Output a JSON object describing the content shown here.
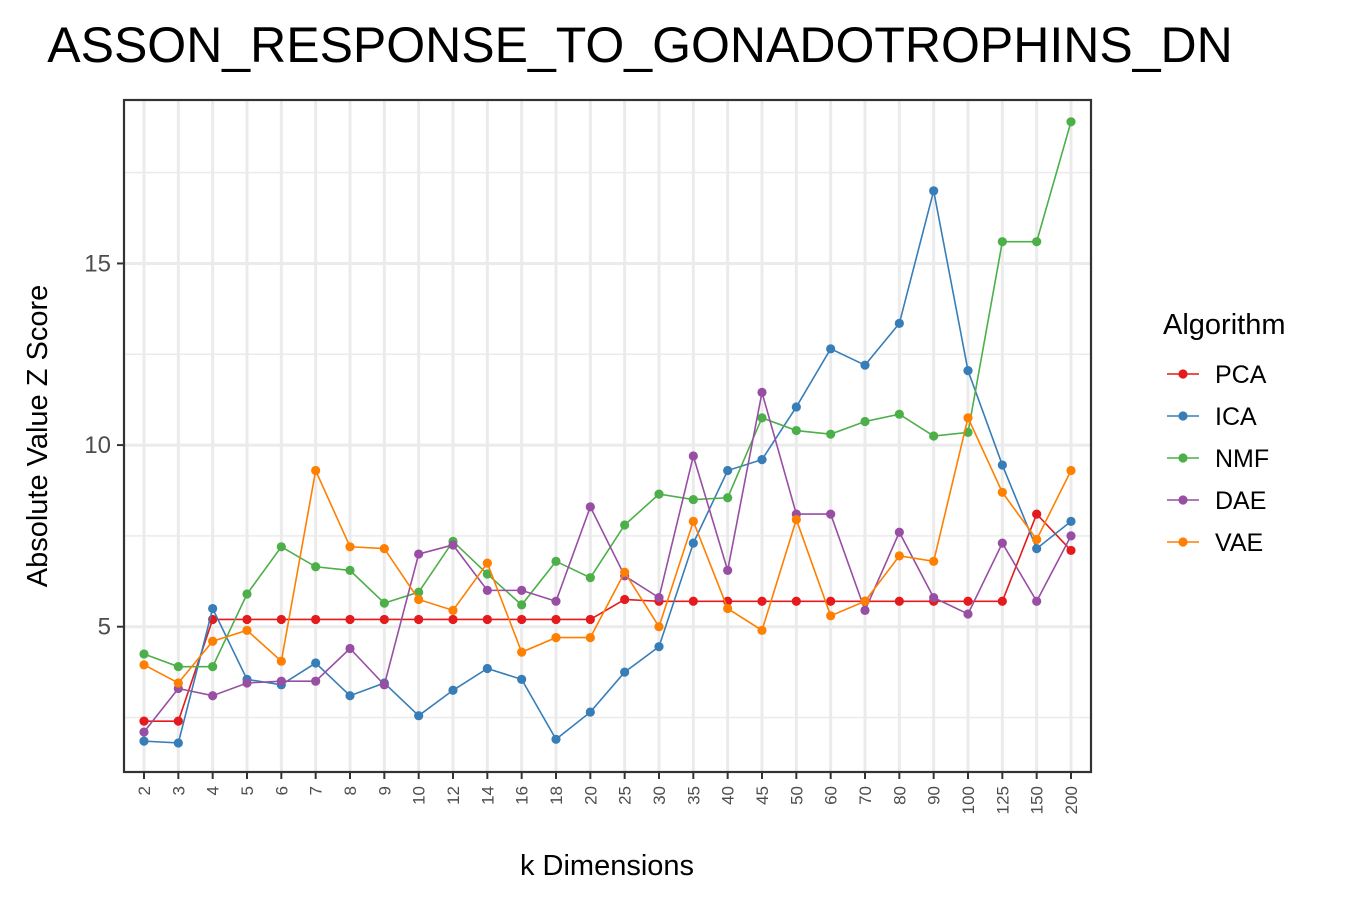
{
  "chart_data": {
    "type": "line",
    "title": "ASSON_RESPONSE_TO_GONADOTROPHINS_DN",
    "xlabel": "k Dimensions",
    "ylabel": "Absolute Value Z Score",
    "categories": [
      "2",
      "3",
      "4",
      "5",
      "6",
      "7",
      "8",
      "9",
      "10",
      "12",
      "14",
      "16",
      "18",
      "20",
      "25",
      "30",
      "35",
      "40",
      "45",
      "50",
      "60",
      "70",
      "80",
      "90",
      "100",
      "125",
      "150",
      "200"
    ],
    "ylim": [
      1.0,
      19.5
    ],
    "yticks": [
      5,
      10,
      15
    ],
    "grid": true,
    "legend": {
      "title": "Algorithm",
      "position": "right"
    },
    "series": [
      {
        "name": "PCA",
        "color": "#e41a1c",
        "values": [
          2.4,
          2.4,
          5.2,
          5.2,
          5.2,
          5.2,
          5.2,
          5.2,
          5.2,
          5.2,
          5.2,
          5.2,
          5.2,
          5.2,
          5.75,
          5.7,
          5.7,
          5.7,
          5.7,
          5.7,
          5.7,
          5.7,
          5.7,
          5.7,
          5.7,
          5.7,
          8.1,
          7.1
        ]
      },
      {
        "name": "ICA",
        "color": "#377eb8",
        "values": [
          1.85,
          1.8,
          5.5,
          3.55,
          3.4,
          4.0,
          3.1,
          3.45,
          2.55,
          3.25,
          3.85,
          3.55,
          1.9,
          2.65,
          3.75,
          4.45,
          7.3,
          9.3,
          9.6,
          11.05,
          12.65,
          12.2,
          13.35,
          17.0,
          12.05,
          9.45,
          7.15,
          7.9
        ]
      },
      {
        "name": "NMF",
        "color": "#4daf4a",
        "values": [
          4.25,
          3.9,
          3.9,
          5.9,
          7.2,
          6.65,
          6.55,
          5.65,
          5.95,
          7.35,
          6.45,
          5.6,
          6.8,
          6.35,
          7.8,
          8.65,
          8.5,
          8.55,
          10.75,
          10.4,
          10.3,
          10.65,
          10.85,
          10.25,
          10.35,
          15.6,
          15.6,
          18.9
        ]
      },
      {
        "name": "DAE",
        "color": "#984ea3",
        "values": [
          2.1,
          3.3,
          3.1,
          3.45,
          3.5,
          3.5,
          4.4,
          3.4,
          7.0,
          7.25,
          6.0,
          6.0,
          5.7,
          8.3,
          6.4,
          5.8,
          9.7,
          6.55,
          11.45,
          8.1,
          8.1,
          5.45,
          7.6,
          5.8,
          5.35,
          7.3,
          5.7,
          7.5
        ]
      },
      {
        "name": "VAE",
        "color": "#ff7f00",
        "values": [
          3.95,
          3.45,
          4.6,
          4.9,
          4.05,
          9.3,
          7.2,
          7.15,
          5.75,
          5.45,
          6.75,
          4.3,
          4.7,
          4.7,
          6.5,
          5.0,
          7.9,
          5.5,
          4.9,
          7.95,
          5.3,
          5.7,
          6.95,
          6.8,
          10.75,
          8.7,
          7.4,
          9.3
        ]
      }
    ]
  }
}
